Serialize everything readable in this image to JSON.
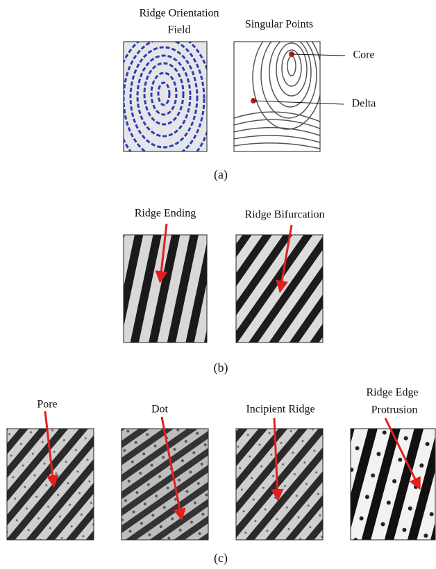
{
  "panel_a": {
    "orientation_title": [
      "Ridge Orientation",
      "Field"
    ],
    "singular_title": "Singular Points",
    "core": "Core",
    "delta": "Delta",
    "caption": "(a)"
  },
  "panel_b": {
    "ending": "Ridge Ending",
    "bifurcation": "Ridge Bifurcation",
    "caption": "(b)"
  },
  "panel_c": {
    "pore": "Pore",
    "dot": "Dot",
    "incipient": "Incipient Ridge",
    "protrusion": [
      "Ridge Edge",
      "Protrusion"
    ],
    "caption": "(c)"
  }
}
